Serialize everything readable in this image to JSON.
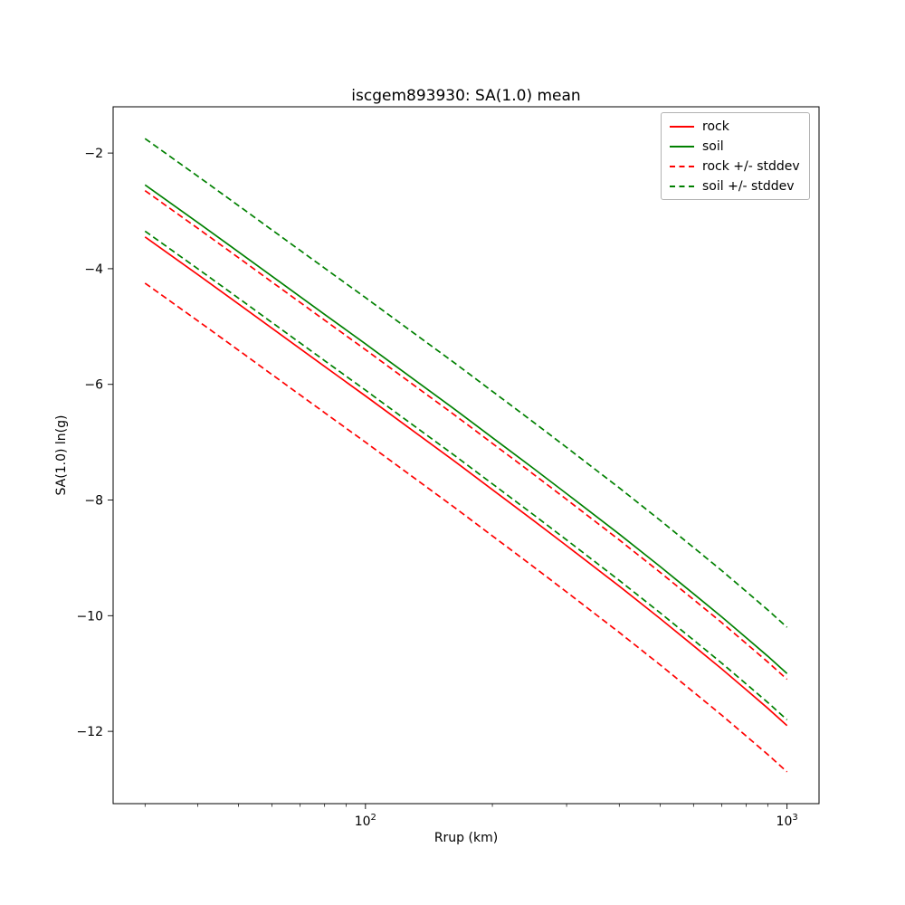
{
  "chart_data": {
    "type": "line",
    "title": "iscgem893930: SA(1.0) mean",
    "xlabel": "Rrup (km)",
    "ylabel": "SA(1.0) ln(g)",
    "x_scale": "log",
    "grid": false,
    "xlim": [
      25.2,
      1191
    ],
    "ylim": [
      -13.25,
      -1.2
    ],
    "y_ticks": [
      -2,
      -4,
      -6,
      -8,
      -10,
      -12
    ],
    "x_major_ticks": [
      100,
      1000
    ],
    "x_major_tick_labels": [
      "10^2",
      "10^3"
    ],
    "x_minor_ticks": [
      30,
      40,
      50,
      60,
      70,
      80,
      90,
      200,
      300,
      400,
      500,
      600,
      700,
      800,
      900
    ],
    "x": [
      30,
      40,
      50,
      60,
      80,
      100,
      130,
      160,
      200,
      250,
      300,
      400,
      500,
      600,
      700,
      800,
      900,
      1000
    ],
    "series": [
      {
        "name": "rock",
        "color": "#ff0000",
        "dash": false,
        "values": [
          -3.45,
          -4.1,
          -4.61,
          -5.03,
          -5.69,
          -6.2,
          -6.81,
          -7.29,
          -7.82,
          -8.35,
          -8.79,
          -9.49,
          -10.05,
          -10.52,
          -10.92,
          -11.28,
          -11.6,
          -11.9
        ]
      },
      {
        "name": "soil",
        "color": "#008000",
        "dash": false,
        "values": [
          -2.55,
          -3.2,
          -3.71,
          -4.13,
          -4.79,
          -5.3,
          -5.91,
          -6.39,
          -6.92,
          -7.45,
          -7.89,
          -8.59,
          -9.15,
          -9.62,
          -10.02,
          -10.38,
          -10.7,
          -11.0
        ]
      },
      {
        "name": "rock +/- stddev",
        "color": "#ff0000",
        "dash": true,
        "values_upper": [
          -2.65,
          -3.3,
          -3.81,
          -4.23,
          -4.89,
          -5.4,
          -6.01,
          -6.49,
          -7.02,
          -7.55,
          -7.99,
          -8.69,
          -9.25,
          -9.72,
          -10.12,
          -10.48,
          -10.8,
          -11.1
        ],
        "values_lower": [
          -4.25,
          -4.9,
          -5.41,
          -5.83,
          -6.49,
          -7.0,
          -7.61,
          -8.09,
          -8.62,
          -9.15,
          -9.59,
          -10.29,
          -10.85,
          -11.32,
          -11.72,
          -12.08,
          -12.4,
          -12.7
        ]
      },
      {
        "name": "soil +/- stddev",
        "color": "#008000",
        "dash": true,
        "values_upper": [
          -1.75,
          -2.4,
          -2.91,
          -3.33,
          -3.99,
          -4.5,
          -5.11,
          -5.59,
          -6.12,
          -6.65,
          -7.09,
          -7.79,
          -8.35,
          -8.82,
          -9.22,
          -9.58,
          -9.9,
          -10.2
        ],
        "values_lower": [
          -3.35,
          -4.0,
          -4.51,
          -4.93,
          -5.59,
          -6.1,
          -6.71,
          -7.19,
          -7.72,
          -8.25,
          -8.69,
          -9.39,
          -9.95,
          -10.42,
          -10.82,
          -11.18,
          -11.5,
          -11.8
        ]
      }
    ],
    "legend": {
      "position": "upper right",
      "entries": [
        "rock",
        "soil",
        "rock +/- stddev",
        "soil +/- stddev"
      ]
    }
  }
}
